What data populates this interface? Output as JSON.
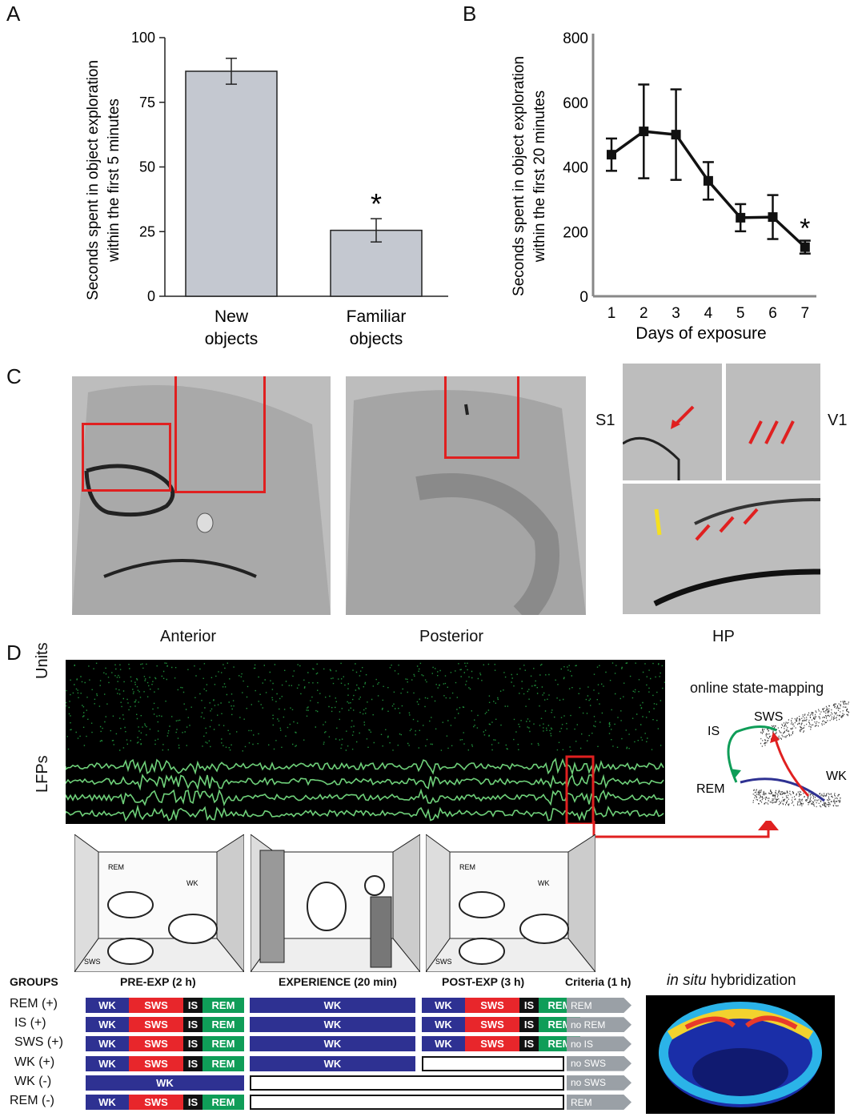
{
  "panels": {
    "a": "A",
    "b": "B",
    "c": "C",
    "d": "D"
  },
  "chart_a": {
    "type": "bar",
    "categories": [
      [
        "New",
        "objects"
      ],
      [
        "Familiar",
        "objects"
      ]
    ],
    "values": [
      87,
      25.5
    ],
    "errors": [
      5,
      4.5
    ],
    "ylabel": [
      "Seconds spent in object exploration",
      "within the first 5 minutes"
    ],
    "yticks": [
      "0",
      "25",
      "50",
      "75",
      "100"
    ],
    "ylim": [
      0,
      100
    ],
    "significance": "*",
    "bar_color": "#c4c8d0"
  },
  "chart_b": {
    "type": "line",
    "x": [
      1,
      2,
      3,
      4,
      5,
      6,
      7
    ],
    "values": [
      438,
      510,
      500,
      357,
      243,
      245,
      152
    ],
    "errors": [
      50,
      145,
      140,
      58,
      42,
      68,
      20
    ],
    "xlabel": "Days of exposure",
    "ylabel": [
      "Seconds spent in object exploration",
      "within the first 20 minutes"
    ],
    "yticks": [
      "0",
      "200",
      "400",
      "600",
      "800"
    ],
    "xticks": [
      "1",
      "2",
      "3",
      "4",
      "5",
      "6",
      "7"
    ],
    "ylim": [
      0,
      800
    ],
    "significance": "*"
  },
  "panel_c": {
    "captions": {
      "anterior": "Anterior",
      "posterior": "Posterior",
      "hp": "HP"
    },
    "region_labels": {
      "s1": "S1",
      "v1": "V1"
    },
    "highlight_color": "#e02020"
  },
  "panel_d": {
    "trace_labels": {
      "units": "Units",
      "lfps": "LFPs"
    },
    "state_map": {
      "title": "online state-mapping",
      "labels": {
        "sws": "SWS",
        "is": "IS",
        "wk": "WK",
        "rem": "REM"
      }
    },
    "cage_labels": {
      "rem": "REM",
      "wk": "WK",
      "sws": "SWS"
    },
    "headers": {
      "groups": "GROUPS",
      "pre": "PRE-EXP (2 h)",
      "exp": "EXPERIENCE (20 min)",
      "post": "POST-EXP (3 h)",
      "criteria": "Criteria (1 h)"
    },
    "ish_italic": "in situ",
    "ish_rest": " hybridization",
    "rows": [
      {
        "group": "REM (+)",
        "pre": "full",
        "exp": true,
        "post": "full",
        "criteria": "REM"
      },
      {
        "group": "IS (+)",
        "pre": "full",
        "exp": true,
        "post": "full",
        "criteria": "no REM"
      },
      {
        "group": "SWS (+)",
        "pre": "full",
        "exp": true,
        "post": "full",
        "criteria": "no IS"
      },
      {
        "group": "WK (+)",
        "pre": "full",
        "exp": true,
        "post": "empty",
        "criteria": "no SWS"
      },
      {
        "group": "WK (-)",
        "pre": "wk",
        "exp": false,
        "post": "empty",
        "criteria": "no SWS"
      },
      {
        "group": "REM (-)",
        "pre": "full",
        "exp": false,
        "post": "empty",
        "criteria": "REM"
      }
    ],
    "segment_labels": {
      "wk": "WK",
      "sws": "SWS",
      "is": "IS",
      "rem": "REM"
    },
    "colors": {
      "wk": "#2e3192",
      "sws": "#e8262b",
      "is": "#111111",
      "rem": "#0f9d58",
      "lfp": "#6fd17a",
      "units": "#1f8f3a"
    }
  }
}
